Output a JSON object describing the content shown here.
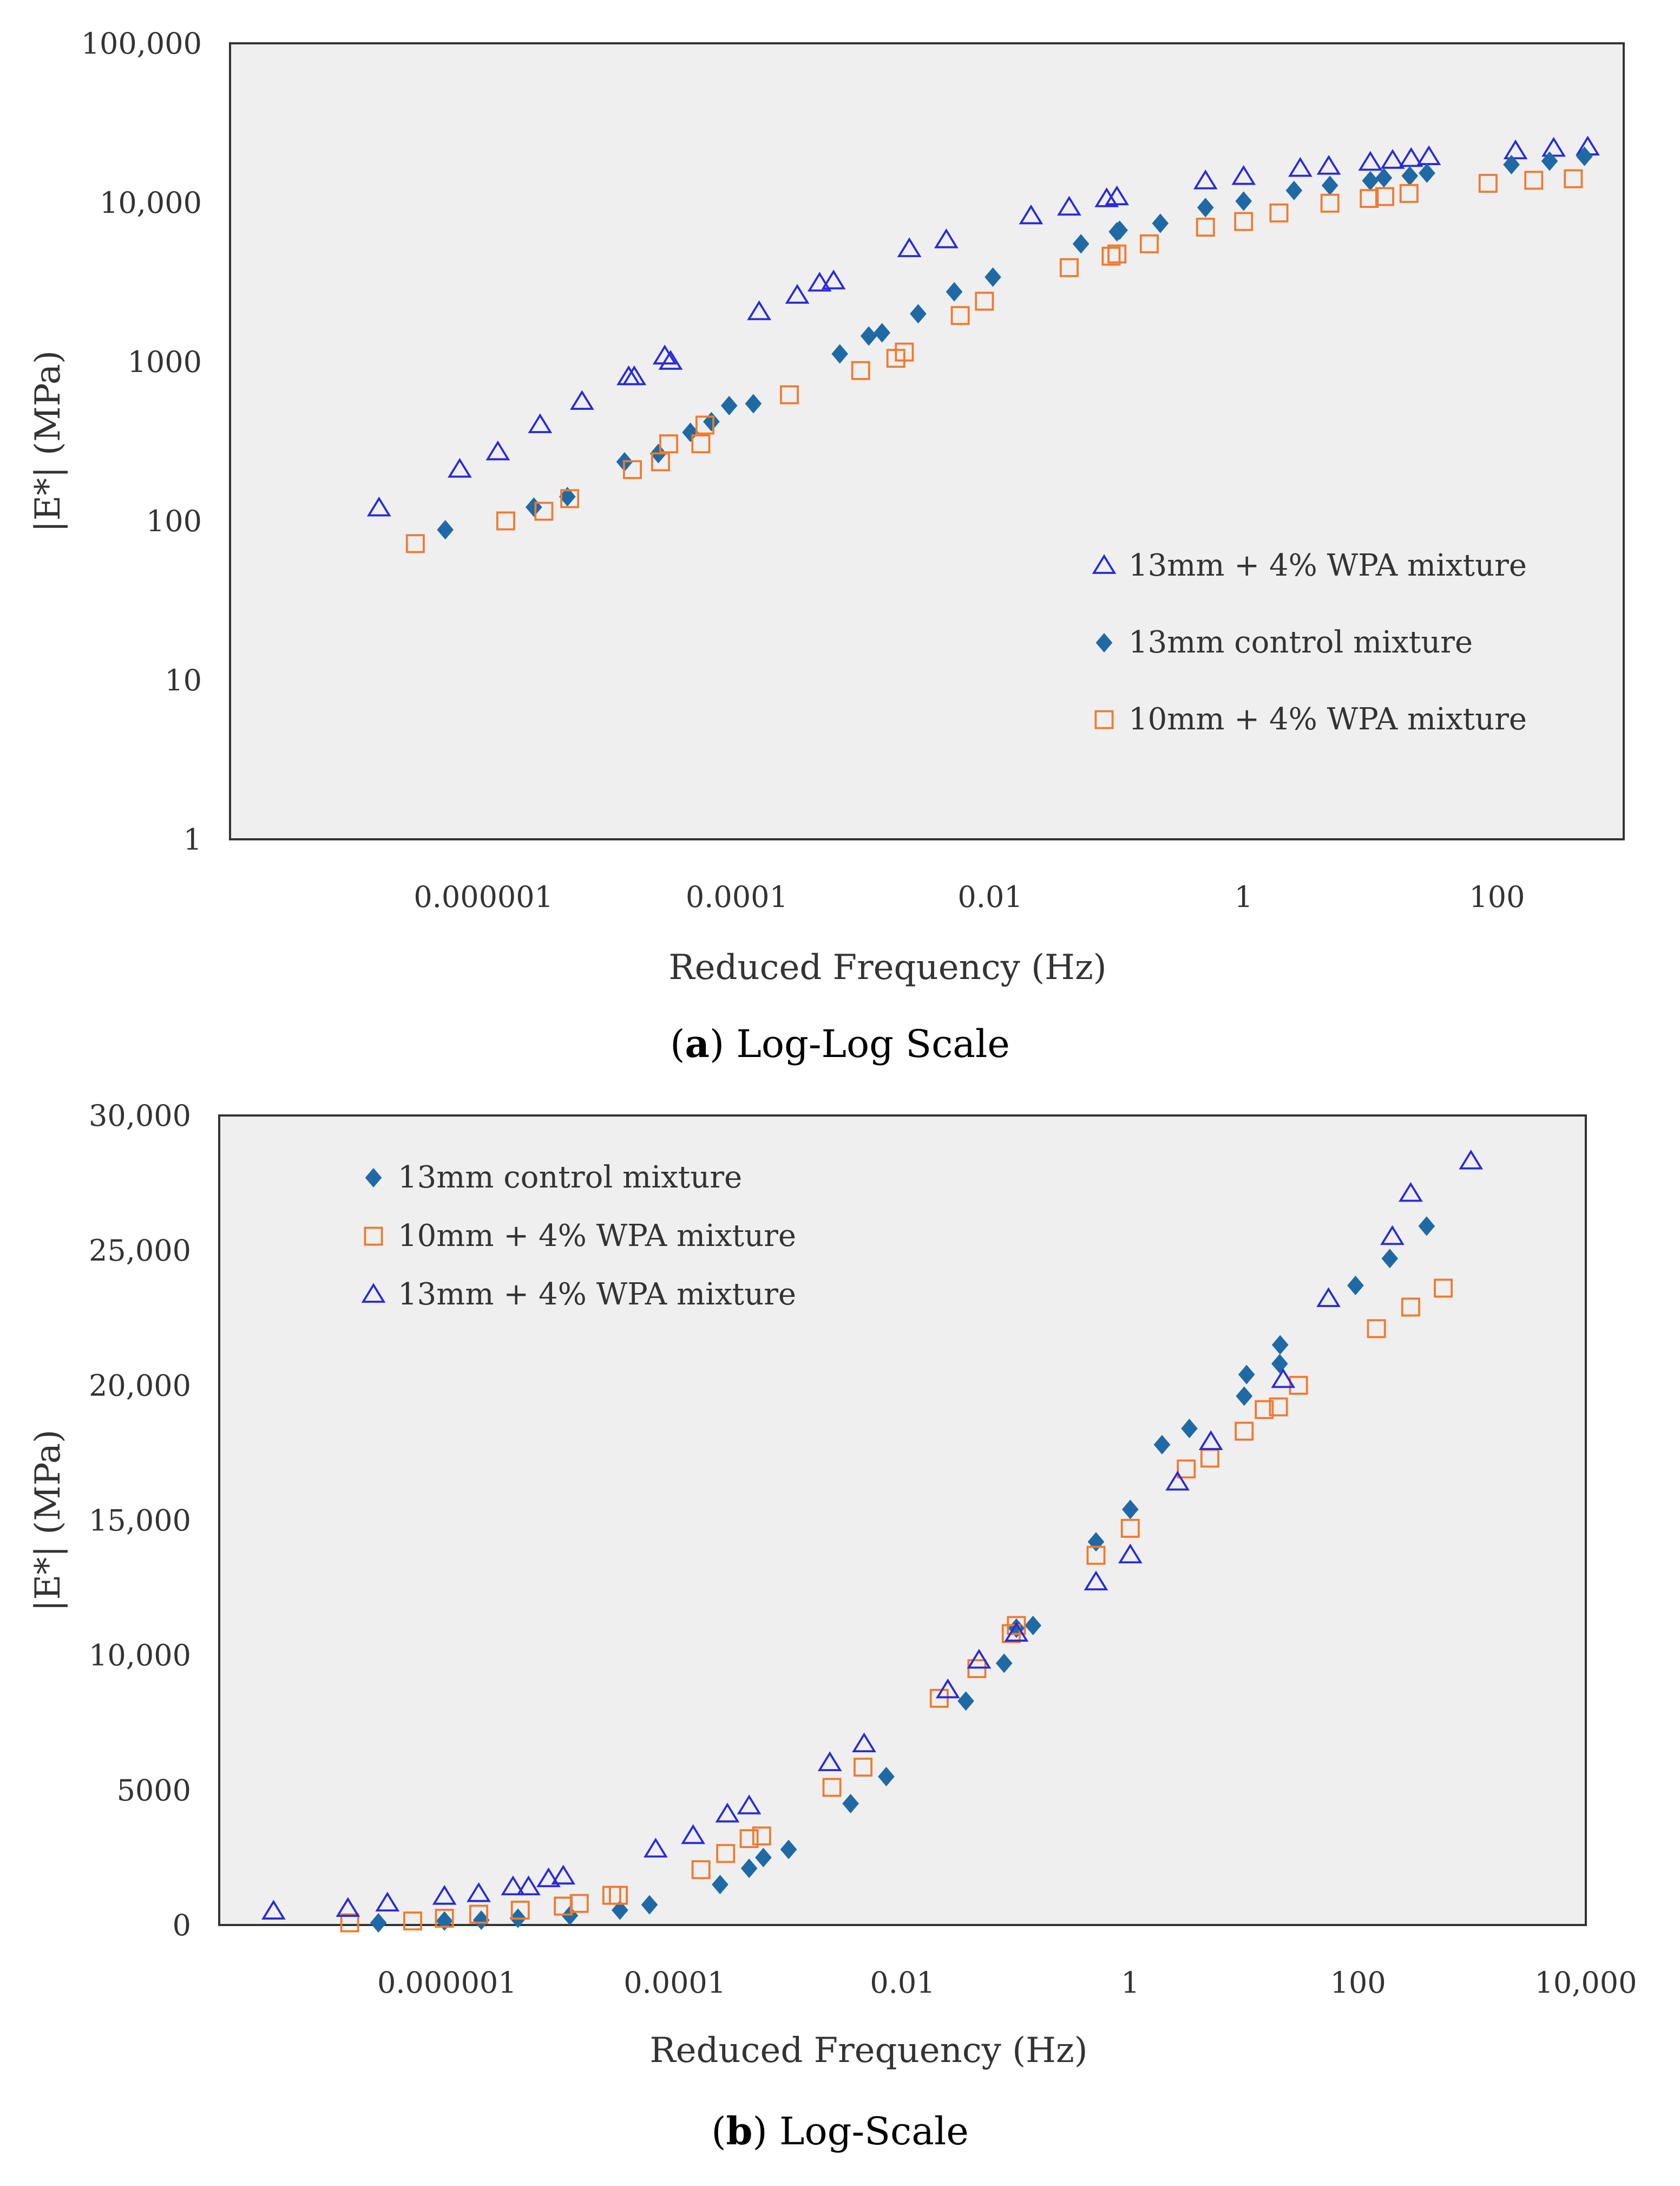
{
  "chart_data": [
    {
      "type": "scatter",
      "panel": "a",
      "caption_letter": "a",
      "caption_text": "Log-Log Scale",
      "xlabel": "Reduced Frequency (Hz)",
      "ylabel": "|E*| (MPa)",
      "x_scale": "log",
      "y_scale": "log",
      "xlim": [
        1e-08,
        1000
      ],
      "ylim": [
        1,
        100000
      ],
      "x_ticks": [
        {
          "value": 1e-06,
          "label": "0.000001"
        },
        {
          "value": 0.0001,
          "label": "0.0001"
        },
        {
          "value": 0.01,
          "label": "0.01"
        },
        {
          "value": 1,
          "label": "1"
        },
        {
          "value": 100,
          "label": "100"
        }
      ],
      "y_ticks": [
        {
          "value": 1,
          "label": "1"
        },
        {
          "value": 10,
          "label": "10"
        },
        {
          "value": 100,
          "label": "100"
        },
        {
          "value": 1000,
          "label": "1000"
        },
        {
          "value": 10000,
          "label": "10,000"
        },
        {
          "value": 100000,
          "label": "100,000"
        }
      ],
      "legend_position": "lower-right",
      "series": [
        {
          "name": "13mm + 4% WPA mixture",
          "marker": "triangle-open",
          "color": "#2a2ad8",
          "points": [
            [
              1.5e-07,
              120
            ],
            [
              6.5e-07,
              210
            ],
            [
              1.3e-06,
              270
            ],
            [
              2.8e-06,
              400
            ],
            [
              6e-06,
              560
            ],
            [
              1.4e-05,
              800
            ],
            [
              1.55e-05,
              800
            ],
            [
              2.7e-05,
              1080
            ],
            [
              3e-05,
              1000
            ],
            [
              0.00015,
              2050
            ],
            [
              0.0003,
              2600
            ],
            [
              0.00045,
              3100
            ],
            [
              0.00058,
              3200
            ],
            [
              0.0023,
              5100
            ],
            [
              0.0045,
              5800
            ],
            [
              0.021,
              8200
            ],
            [
              0.042,
              9300
            ],
            [
              0.083,
              10500
            ],
            [
              0.1,
              10800
            ],
            [
              0.5,
              13600
            ],
            [
              1,
              14500
            ],
            [
              2.8,
              16300
            ],
            [
              4.7,
              16800
            ],
            [
              10,
              17800
            ],
            [
              15,
              18300
            ],
            [
              21,
              18800
            ],
            [
              29,
              19300
            ],
            [
              140,
              21000
            ],
            [
              280,
              21800
            ],
            [
              520,
              22200
            ]
          ]
        },
        {
          "name": "13mm control mixture",
          "marker": "diamond",
          "color": "#1f6aa5",
          "points": [
            [
              5e-07,
              88
            ],
            [
              2.5e-06,
              122
            ],
            [
              4.6e-06,
              142
            ],
            [
              1.3e-05,
              235
            ],
            [
              2.4e-05,
              265
            ],
            [
              4.3e-05,
              360
            ],
            [
              6.3e-05,
              420
            ],
            [
              8.7e-05,
              530
            ],
            [
              0.000135,
              545
            ],
            [
              0.00065,
              1120
            ],
            [
              0.0011,
              1450
            ],
            [
              0.0014,
              1520
            ],
            [
              0.0027,
              2000
            ],
            [
              0.0052,
              2750
            ],
            [
              0.0105,
              3400
            ],
            [
              0.052,
              5500
            ],
            [
              0.1,
              6550
            ],
            [
              0.105,
              6700
            ],
            [
              0.22,
              7400
            ],
            [
              0.5,
              9300
            ],
            [
              1,
              10200
            ],
            [
              2.5,
              11900
            ],
            [
              4.8,
              12800
            ],
            [
              10,
              13700
            ],
            [
              12.8,
              14300
            ],
            [
              20.5,
              14700
            ],
            [
              28,
              15300
            ],
            [
              130,
              17300
            ],
            [
              260,
              18200
            ],
            [
              490,
              19500
            ]
          ]
        },
        {
          "name": "10mm + 4% WPA mixture",
          "marker": "square-open",
          "color": "#ee7b30",
          "points": [
            [
              2.9e-07,
              72
            ],
            [
              1.5e-06,
              100
            ],
            [
              3e-06,
              115
            ],
            [
              4.8e-06,
              138
            ],
            [
              1.5e-05,
              210
            ],
            [
              2.5e-05,
              235
            ],
            [
              2.9e-05,
              305
            ],
            [
              5.2e-05,
              305
            ],
            [
              5.6e-05,
              400
            ],
            [
              0.00026,
              620
            ],
            [
              0.00095,
              880
            ],
            [
              0.0018,
              1050
            ],
            [
              0.0021,
              1150
            ],
            [
              0.0058,
              1950
            ],
            [
              0.009,
              2400
            ],
            [
              0.042,
              3900
            ],
            [
              0.09,
              4600
            ],
            [
              0.1,
              4750
            ],
            [
              0.18,
              5500
            ],
            [
              0.5,
              7000
            ],
            [
              1,
              7600
            ],
            [
              1.9,
              8600
            ],
            [
              4.8,
              9900
            ],
            [
              9.8,
              10600
            ],
            [
              13,
              10900
            ],
            [
              20.2,
              11400
            ],
            [
              85,
              13200
            ],
            [
              195,
              13800
            ],
            [
              400,
              14100
            ]
          ]
        }
      ]
    },
    {
      "type": "scatter",
      "panel": "b",
      "caption_letter": "b",
      "caption_text": "Log-Scale",
      "xlabel": "Reduced Frequency (Hz)",
      "ylabel": "|E*| (MPa)",
      "x_scale": "log",
      "y_scale": "linear",
      "xlim": [
        1e-08,
        10000
      ],
      "ylim": [
        0,
        30000
      ],
      "x_ticks": [
        {
          "value": 1e-06,
          "label": "0.000001"
        },
        {
          "value": 0.0001,
          "label": "0.0001"
        },
        {
          "value": 0.01,
          "label": "0.01"
        },
        {
          "value": 1,
          "label": "1"
        },
        {
          "value": 100,
          "label": "100"
        },
        {
          "value": 10000,
          "label": "10,000"
        }
      ],
      "y_ticks": [
        {
          "value": 0,
          "label": "0"
        },
        {
          "value": 5000,
          "label": "5000"
        },
        {
          "value": 10000,
          "label": "10,000"
        },
        {
          "value": 15000,
          "label": "15,000"
        },
        {
          "value": 20000,
          "label": "20,000"
        },
        {
          "value": 25000,
          "label": "25,000"
        },
        {
          "value": 30000,
          "label": "30,000"
        }
      ],
      "legend_position": "top-left",
      "series": [
        {
          "name": "13mm control mixture",
          "marker": "diamond",
          "color": "#1f6aa5",
          "points": [
            [
              2.5e-07,
              80
            ],
            [
              9.5e-07,
              150
            ],
            [
              2e-06,
              180
            ],
            [
              4.2e-06,
              250
            ],
            [
              1.2e-05,
              350
            ],
            [
              3.3e-05,
              550
            ],
            [
              6e-05,
              750
            ],
            [
              0.00025,
              1500
            ],
            [
              0.00045,
              2100
            ],
            [
              0.0006,
              2500
            ],
            [
              0.001,
              2800
            ],
            [
              0.0035,
              4500
            ],
            [
              0.0072,
              5500
            ],
            [
              0.036,
              8300
            ],
            [
              0.078,
              9700
            ],
            [
              0.1,
              11000
            ],
            [
              0.14,
              11100
            ],
            [
              0.5,
              14200
            ],
            [
              1,
              15400
            ],
            [
              1.9,
              17800
            ],
            [
              3.3,
              18400
            ],
            [
              10,
              19600
            ],
            [
              10.5,
              20400
            ],
            [
              20.5,
              20800
            ],
            [
              20.7,
              21500
            ],
            [
              95,
              23700
            ],
            [
              190,
              24700
            ],
            [
              400,
              25900
            ]
          ]
        },
        {
          "name": "10mm + 4% WPA mixture",
          "marker": "square-open",
          "color": "#ee7b30",
          "points": [
            [
              1.4e-07,
              80
            ],
            [
              5e-07,
              150
            ],
            [
              9.5e-07,
              250
            ],
            [
              1.9e-06,
              400
            ],
            [
              4.4e-06,
              550
            ],
            [
              1.05e-05,
              700
            ],
            [
              1.45e-05,
              800
            ],
            [
              2.8e-05,
              1100
            ],
            [
              3.2e-05,
              1100
            ],
            [
              0.00017,
              2050
            ],
            [
              0.00028,
              2650
            ],
            [
              0.00045,
              3200
            ],
            [
              0.00058,
              3300
            ],
            [
              0.0024,
              5100
            ],
            [
              0.0045,
              5850
            ],
            [
              0.021,
              8400
            ],
            [
              0.045,
              9500
            ],
            [
              0.09,
              10800
            ],
            [
              0.1,
              11100
            ],
            [
              0.5,
              13700
            ],
            [
              1,
              14700
            ],
            [
              3.1,
              16900
            ],
            [
              5,
              17300
            ],
            [
              10,
              18300
            ],
            [
              15,
              19100
            ],
            [
              20,
              19200
            ],
            [
              30,
              20000
            ],
            [
              145,
              22100
            ],
            [
              290,
              22900
            ],
            [
              560,
              23600
            ]
          ]
        },
        {
          "name": "13mm + 4% WPA mixture",
          "marker": "triangle-open",
          "color": "#2a2ad8",
          "points": [
            [
              3e-08,
              500
            ],
            [
              1.35e-07,
              600
            ],
            [
              3e-07,
              800
            ],
            [
              9.5e-07,
              1050
            ],
            [
              1.9e-06,
              1150
            ],
            [
              3.8e-06,
              1400
            ],
            [
              5.2e-06,
              1400
            ],
            [
              7.8e-06,
              1700
            ],
            [
              1.05e-05,
              1800
            ],
            [
              6.8e-05,
              2800
            ],
            [
              0.000145,
              3300
            ],
            [
              0.00029,
              4100
            ],
            [
              0.00045,
              4400
            ],
            [
              0.0023,
              6000
            ],
            [
              0.0046,
              6700
            ],
            [
              0.025,
              8700
            ],
            [
              0.047,
              9800
            ],
            [
              0.1,
              10800
            ],
            [
              0.5,
              12700
            ],
            [
              1,
              13700
            ],
            [
              2.6,
              16400
            ],
            [
              5.1,
              17900
            ],
            [
              22,
              20200
            ],
            [
              55,
              23200
            ],
            [
              200,
              25500
            ],
            [
              290,
              27100
            ],
            [
              980,
              28300
            ]
          ]
        }
      ]
    }
  ]
}
